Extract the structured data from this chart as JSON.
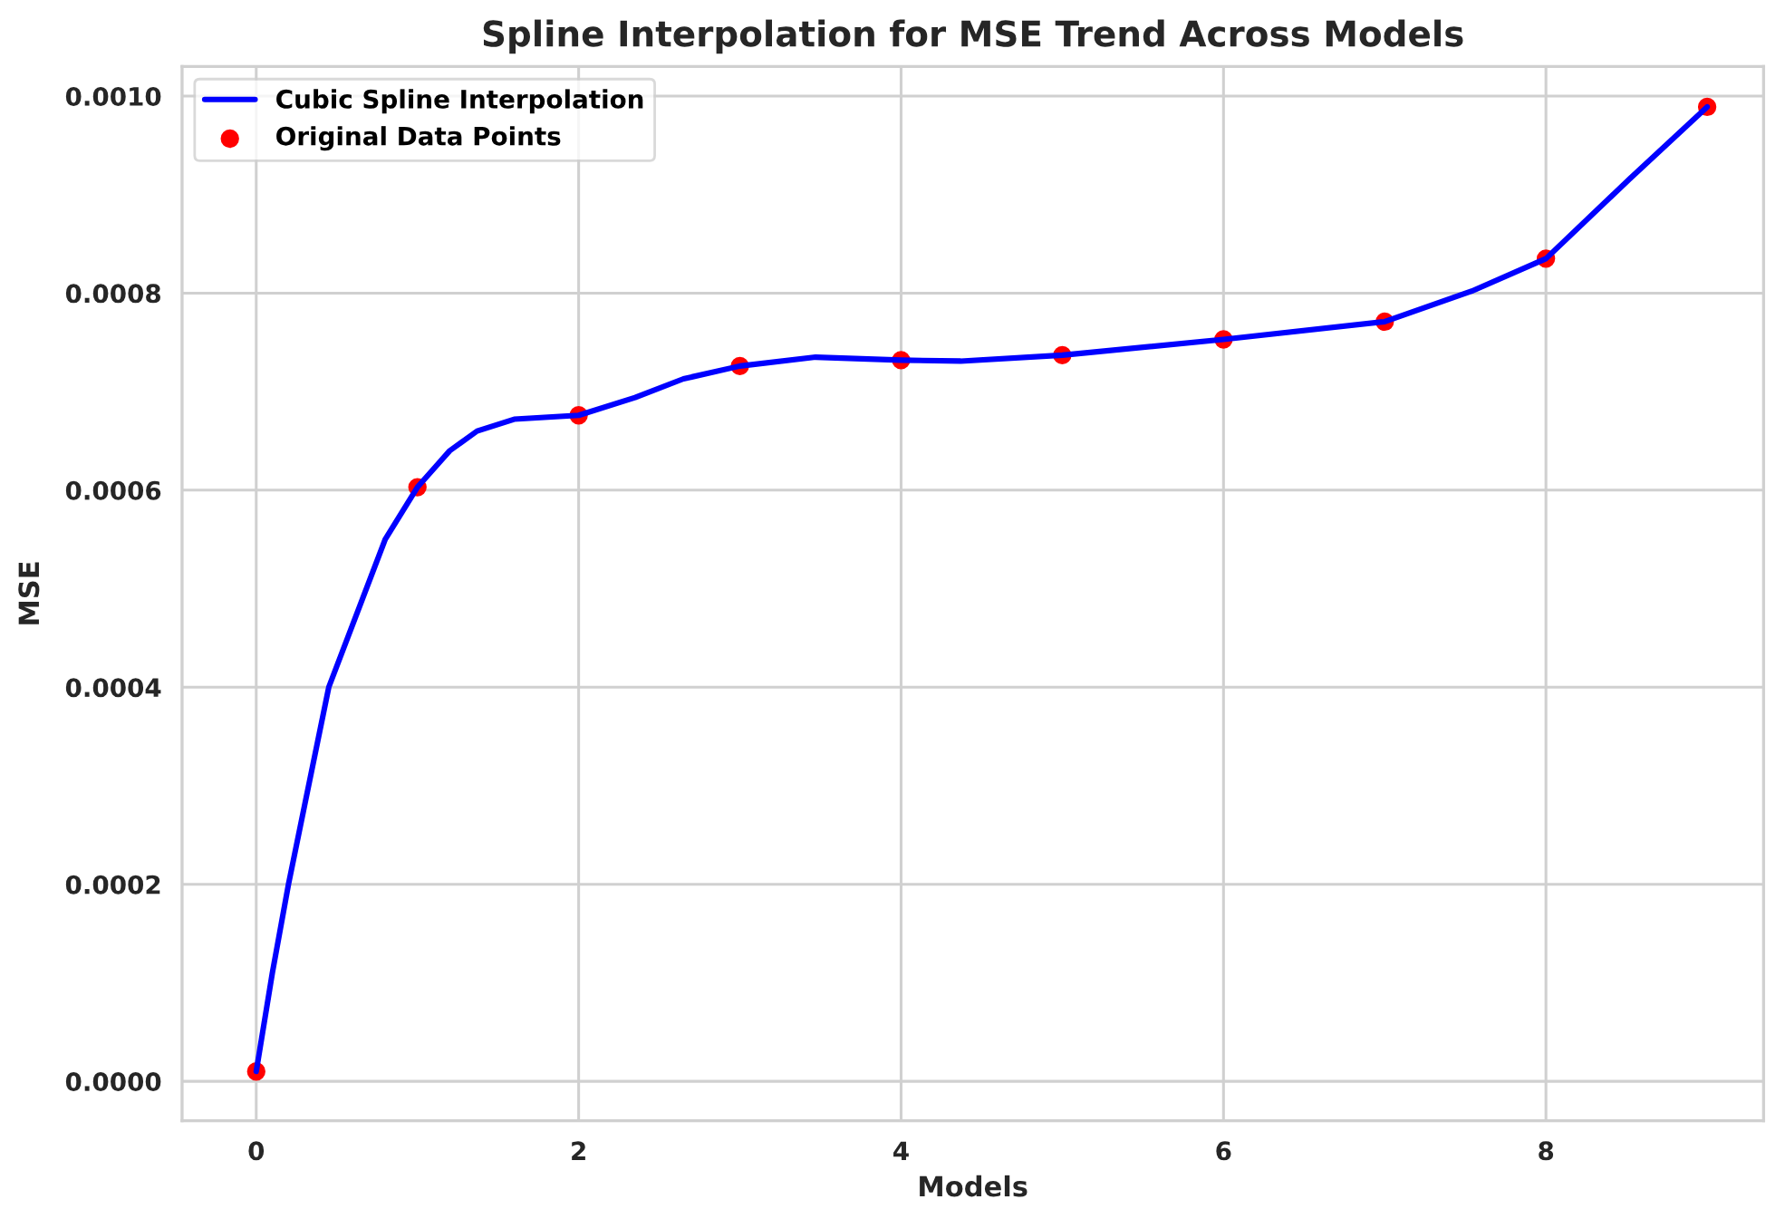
{
  "chart_data": {
    "type": "line",
    "title": "Spline Interpolation for MSE Trend Across Models",
    "xlabel": "Models",
    "ylabel": "MSE",
    "x": [
      0,
      1,
      2,
      3,
      4,
      5,
      6,
      7,
      8,
      9
    ],
    "series": [
      {
        "name": "Cubic Spline Interpolation",
        "color": "#0000ff",
        "x": [
          0,
          0.1,
          0.2,
          0.3,
          0.45,
          0.66,
          0.8,
          1,
          1.2,
          1.37,
          1.6,
          2,
          2.35,
          2.65,
          3,
          3.47,
          4,
          4.37,
          5,
          6,
          7,
          7.54,
          8,
          8.52,
          9
        ],
        "values": [
          1e-05,
          0.00011,
          0.0002,
          0.00028,
          0.0004,
          0.00049,
          0.00055,
          0.000603,
          0.00064,
          0.00066,
          0.000672,
          0.000676,
          0.000694,
          0.000713,
          0.000726,
          0.000735,
          0.000732,
          0.000731,
          0.000737,
          0.000753,
          0.000771,
          0.000802,
          0.000835,
          0.000916,
          0.000989
        ]
      },
      {
        "name": "Original Data Points",
        "type": "scatter",
        "color": "#ff0000",
        "marker": "circle",
        "values": [
          1e-05,
          0.000603,
          0.000676,
          0.000726,
          0.000732,
          0.000737,
          0.000753,
          0.000771,
          0.000835,
          0.000989
        ]
      }
    ],
    "xlim": [
      -0.46,
      9.35
    ],
    "xticks": [
      0,
      2,
      4,
      6,
      8
    ],
    "ylim": [
      -4e-05,
      0.00103
    ],
    "yticks": [
      {
        "value": 0,
        "label": "0.0000"
      },
      {
        "value": 0.0002,
        "label": "0.0002"
      },
      {
        "value": 0.0004,
        "label": "0.0004"
      },
      {
        "value": 0.0006,
        "label": "0.0006"
      },
      {
        "value": 0.0008,
        "label": "0.0008"
      },
      {
        "value": 0.001,
        "label": "0.0010"
      }
    ],
    "grid": true,
    "legend": "top left"
  }
}
